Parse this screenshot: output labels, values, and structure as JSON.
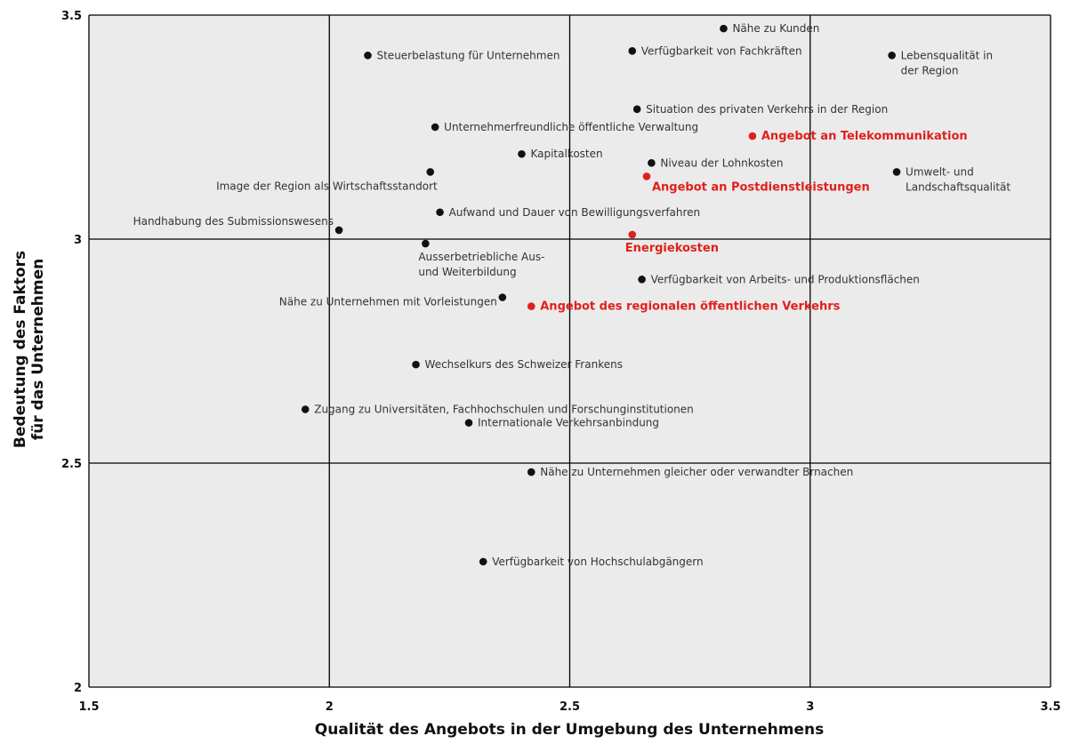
{
  "chart_data": {
    "type": "scatter",
    "xlabel": "Qualität des Angebots in der Umgebung des Unternehmens",
    "ylabel_lines": [
      "Bedeutung des Faktors",
      "für das Unternehmen"
    ],
    "xlim": [
      1.5,
      3.5
    ],
    "ylim": [
      2,
      3.5
    ],
    "x_ticks": [
      1.5,
      2,
      2.5,
      3,
      3.5
    ],
    "x_tick_labels": [
      "1.5",
      "2",
      "2.5",
      "3",
      "3.5"
    ],
    "y_ticks": [
      2,
      2.5,
      3,
      3.5
    ],
    "y_tick_labels": [
      "2",
      "2.5",
      "3",
      "3.5"
    ],
    "grid": true,
    "plot_background": "#ebebeb",
    "colors": {
      "default": "#111111",
      "highlight": "#e0201c",
      "label_default": "#333333",
      "grid": "#000000"
    },
    "points": [
      {
        "lines": [
          "Nähe zu Kunden"
        ],
        "x": 2.82,
        "y": 3.47,
        "highlight": false,
        "anchor": "right"
      },
      {
        "lines": [
          "Steuerbelastung für Unternehmen"
        ],
        "x": 2.08,
        "y": 3.41,
        "highlight": false,
        "anchor": "right"
      },
      {
        "lines": [
          "Verfügbarkeit von Fachkräften"
        ],
        "x": 2.63,
        "y": 3.42,
        "highlight": false,
        "anchor": "right"
      },
      {
        "lines": [
          "Lebensqualität in",
          "der Region"
        ],
        "x": 3.17,
        "y": 3.41,
        "highlight": false,
        "anchor": "right"
      },
      {
        "lines": [
          "Situation des privaten Verkehrs in der Region"
        ],
        "x": 2.64,
        "y": 3.29,
        "highlight": false,
        "anchor": "right"
      },
      {
        "lines": [
          "Unternehmerfreundliche öffentliche Verwaltung"
        ],
        "x": 2.22,
        "y": 3.25,
        "highlight": false,
        "anchor": "right"
      },
      {
        "lines": [
          "Angebot an Telekommunikation"
        ],
        "x": 2.88,
        "y": 3.23,
        "highlight": true,
        "anchor": "right"
      },
      {
        "lines": [
          "Kapitalkosten"
        ],
        "x": 2.4,
        "y": 3.19,
        "highlight": false,
        "anchor": "right"
      },
      {
        "lines": [
          "Niveau der Lohnkosten"
        ],
        "x": 2.67,
        "y": 3.17,
        "highlight": false,
        "anchor": "right"
      },
      {
        "lines": [
          "Umwelt- und",
          "Landschaftsqualität"
        ],
        "x": 3.18,
        "y": 3.15,
        "highlight": false,
        "anchor": "right"
      },
      {
        "lines": [
          "Image der Region als Wirtschaftsstandort"
        ],
        "x": 2.21,
        "y": 3.15,
        "highlight": false,
        "anchor": "below-left"
      },
      {
        "lines": [
          "Angebot an Postdienstleistungen"
        ],
        "x": 2.66,
        "y": 3.14,
        "highlight": true,
        "anchor": "right-below"
      },
      {
        "lines": [
          "Aufwand und Dauer von Bewilligungsverfahren"
        ],
        "x": 2.23,
        "y": 3.06,
        "highlight": false,
        "anchor": "right"
      },
      {
        "lines": [
          "Handhabung des Submissionswesens"
        ],
        "x": 2.02,
        "y": 3.02,
        "highlight": false,
        "anchor": "above-left"
      },
      {
        "lines": [
          "Energiekosten"
        ],
        "x": 2.63,
        "y": 3.01,
        "highlight": true,
        "anchor": "below"
      },
      {
        "lines": [
          "Ausserbetriebliche Aus-",
          "und Weiterbildung"
        ],
        "x": 2.2,
        "y": 2.99,
        "highlight": false,
        "anchor": "below"
      },
      {
        "lines": [
          "Verfügbarkeit von Arbeits- und Produktionsflächen"
        ],
        "x": 2.65,
        "y": 2.91,
        "highlight": false,
        "anchor": "right"
      },
      {
        "lines": [
          "Nähe zu Unternehmen mit Vorleistungen"
        ],
        "x": 2.36,
        "y": 2.87,
        "highlight": false,
        "anchor": "left"
      },
      {
        "lines": [
          "Angebot des regionalen öffentlichen Verkehrs"
        ],
        "x": 2.42,
        "y": 2.85,
        "highlight": true,
        "anchor": "right"
      },
      {
        "lines": [
          "Wechselkurs des Schweizer Frankens"
        ],
        "x": 2.18,
        "y": 2.72,
        "highlight": false,
        "anchor": "right"
      },
      {
        "lines": [
          "Zugang zu Universitäten, Fachhochschulen und Forschunginstitutionen"
        ],
        "x": 1.95,
        "y": 2.62,
        "highlight": false,
        "anchor": "right"
      },
      {
        "lines": [
          "Internationale Verkehrsanbindung"
        ],
        "x": 2.29,
        "y": 2.59,
        "highlight": false,
        "anchor": "right"
      },
      {
        "lines": [
          "Nähe zu Unternehmen gleicher oder verwandter Brnachen"
        ],
        "x": 2.42,
        "y": 2.48,
        "highlight": false,
        "anchor": "right"
      },
      {
        "lines": [
          "Verfügbarkeit von Hochschulabgängern"
        ],
        "x": 2.32,
        "y": 2.28,
        "highlight": false,
        "anchor": "right"
      }
    ]
  }
}
